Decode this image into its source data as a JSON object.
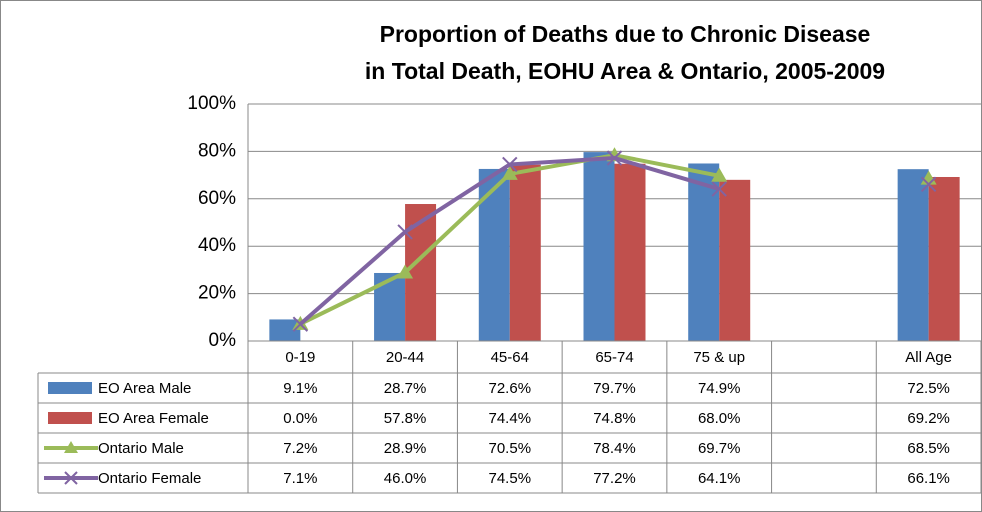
{
  "chart_data": {
    "type": "bar",
    "title": [
      "Proportion of Deaths due to Chronic Disease",
      "in Total Death, EOHU Area & Ontario, 2005-2009"
    ],
    "categories": [
      "0-19",
      "20-44",
      "45-64",
      "65-74",
      "75 & up",
      null,
      "All Age"
    ],
    "ylim": [
      0,
      100
    ],
    "yticks": [
      {
        "value": 0,
        "label": "0%"
      },
      {
        "value": 20,
        "label": "20%"
      },
      {
        "value": 40,
        "label": "40%"
      },
      {
        "value": 60,
        "label": "60%"
      },
      {
        "value": 80,
        "label": "80%"
      },
      {
        "value": 100,
        "label": "100%"
      }
    ],
    "grid": true,
    "data_table": true,
    "series": [
      {
        "name": "EO Area Male",
        "type": "bar",
        "color": "#4f81bd",
        "values": [
          9.1,
          28.7,
          72.6,
          79.7,
          74.9,
          null,
          72.5
        ],
        "value_labels": [
          "9.1%",
          "28.7%",
          "72.6%",
          "79.7%",
          "74.9%",
          null,
          "72.5%"
        ]
      },
      {
        "name": "EO Area Female",
        "type": "bar",
        "color": "#c0504d",
        "values": [
          0.0,
          57.8,
          74.4,
          74.8,
          68.0,
          null,
          69.2
        ],
        "value_labels": [
          "0.0%",
          "57.8%",
          "74.4%",
          "74.8%",
          "68.0%",
          null,
          "69.2%"
        ]
      },
      {
        "name": "Ontario Male",
        "type": "line",
        "marker": "triangle",
        "color": "#9bbb59",
        "values": [
          7.2,
          28.9,
          70.5,
          78.4,
          69.7,
          null,
          68.5
        ],
        "value_labels": [
          "7.2%",
          "28.9%",
          "70.5%",
          "78.4%",
          "69.7%",
          null,
          "68.5%"
        ]
      },
      {
        "name": "Ontario Female",
        "type": "line",
        "marker": "x",
        "color": "#8064a2",
        "values": [
          7.1,
          46.0,
          74.5,
          77.2,
          64.1,
          null,
          66.1
        ],
        "value_labels": [
          "7.1%",
          "46.0%",
          "74.5%",
          "77.2%",
          "64.1%",
          null,
          "66.1%"
        ]
      }
    ]
  }
}
